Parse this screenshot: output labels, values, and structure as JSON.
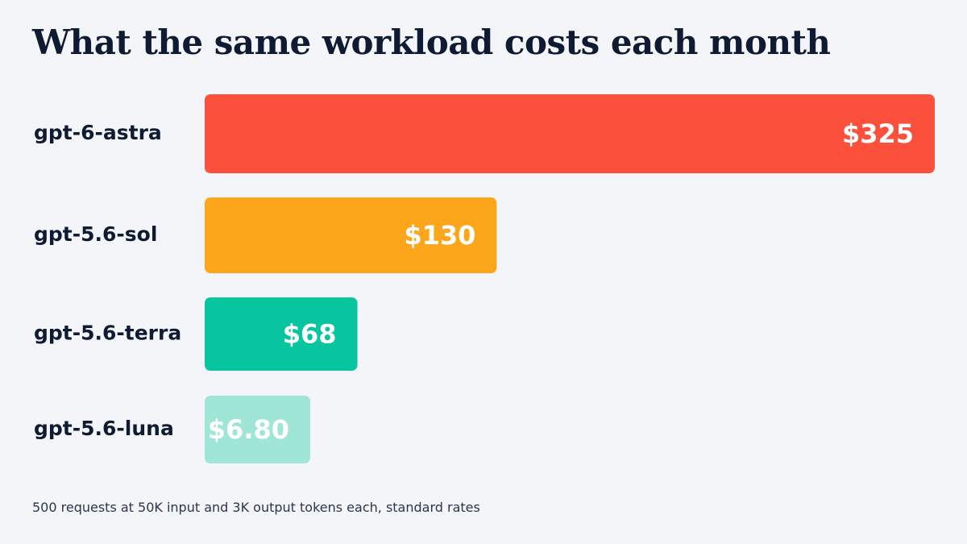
{
  "chart_data": {
    "type": "bar",
    "orientation": "horizontal",
    "title": "What the same workload costs each month",
    "note": "500 requests at 50K input and 3K output tokens each, standard rates",
    "unit": "USD per month",
    "categories": [
      "gpt-6-astra",
      "gpt-5.6-sol",
      "gpt-5.6-terra",
      "gpt-5.6-luna"
    ],
    "values": [
      325,
      130,
      68,
      6.8
    ],
    "value_labels": [
      "$325",
      "$130",
      "$68",
      "$6.80"
    ],
    "colors": [
      "#fb503b",
      "#fba61b",
      "#06c59f",
      "#a0e6d7"
    ],
    "xlim": [
      0,
      325
    ],
    "grid": false,
    "legend": "none"
  }
}
